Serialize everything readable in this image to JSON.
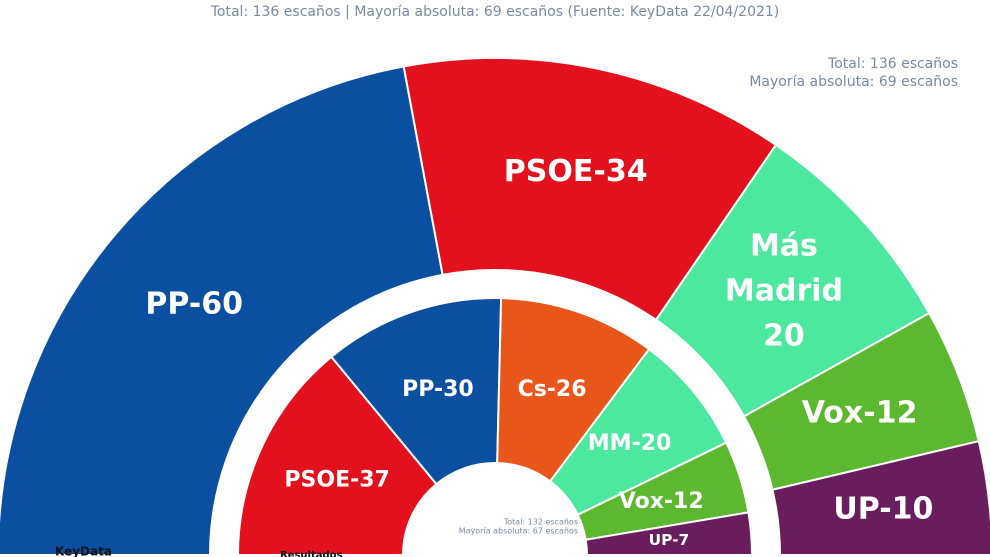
{
  "subtitle": "Total: 136 escaños | Mayoría absoluta: 69 escaños (Fuente: KeyData 22/04/2021)",
  "chart_data": [
    {
      "type": "pie",
      "half": true,
      "categories": [
        "PP",
        "PSOE",
        "Más Madrid",
        "Vox",
        "UP"
      ],
      "values": [
        60,
        34,
        20,
        12,
        10
      ],
      "value_labels": [
        "PP-60",
        "PSOE-34",
        "Más Madrid 20",
        "Vox-12",
        "UP-10"
      ],
      "colors": [
        "#0b4fa0",
        "#e3101e",
        "#4de8a0",
        "#5cb82e",
        "#6a1d5e"
      ],
      "notes": [
        "Total: 136 escaños",
        "Mayoría absoluta: 69 escaños"
      ],
      "caption": "KeyData"
    },
    {
      "type": "pie",
      "half": true,
      "categories": [
        "PSOE",
        "PP",
        "Cs",
        "MM",
        "Vox",
        "UP"
      ],
      "values": [
        37,
        30,
        26,
        20,
        12,
        7
      ],
      "value_labels": [
        "PSOE-37",
        "PP-30",
        "Cs-26",
        "MM-20",
        "Vox-12",
        "UP-7"
      ],
      "colors": [
        "#e3101e",
        "#0b4fa0",
        "#e8561a",
        "#4de8a0",
        "#5cb82e",
        "#6a1d5e"
      ],
      "notes": [
        "Total: 132 escaños",
        "Mayoría absoluta: 67 escaños"
      ],
      "caption": "Resultados"
    }
  ]
}
